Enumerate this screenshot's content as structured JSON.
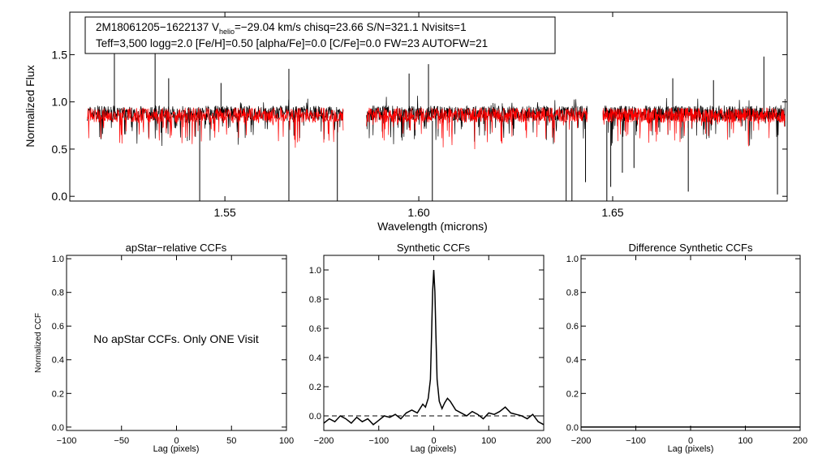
{
  "colors": {
    "observed": "#000000",
    "model": "#ff0000",
    "axes": "#000000",
    "background": "#ffffff"
  },
  "chart_data": [
    {
      "type": "line",
      "id": "spectrum",
      "title_line1_prefix": "2M18061205−1622137  V",
      "title_line1_subscript": "helio",
      "title_line1_suffix": "=−29.04 km/s  chisq=23.66  S/N=321.1  Nvisits=1",
      "title_line2": "Teff=3,500 logg=2.0 [Fe/H]=0.50 [alpha/Fe]=0.0 [C/Fe]=0.0 FW=23 AUTOFW=21",
      "xlabel": "Wavelength (microns)",
      "ylabel": "Normalized Flux",
      "xlim": [
        1.51,
        1.695
      ],
      "ylim": [
        -0.05,
        1.95
      ],
      "xticks": [
        1.55,
        1.6,
        1.65
      ],
      "xtick_labels": [
        "1.55",
        "1.60",
        "1.65"
      ],
      "yticks": [
        0.0,
        0.5,
        1.0,
        1.5
      ],
      "ytick_labels": [
        "0.0",
        "0.5",
        "1.0",
        "1.5"
      ],
      "detector_gaps": [
        [
          1.5805,
          1.5865
        ],
        [
          1.6435,
          1.6475
        ]
      ],
      "chips": [
        [
          1.5145,
          1.5805
        ],
        [
          1.5865,
          1.6435
        ],
        [
          1.6475,
          1.6945
        ]
      ],
      "series": [
        {
          "name": "observed",
          "color": "#000000",
          "continuum": 0.88
        },
        {
          "name": "model",
          "color": "#ff0000",
          "continuum": 0.86
        }
      ],
      "emission_spikes": [
        [
          1.5215,
          1.62
        ],
        [
          1.532,
          1.62
        ],
        [
          1.5355,
          1.25
        ],
        [
          1.549,
          1.2
        ],
        [
          1.5665,
          1.35
        ],
        [
          1.5975,
          1.3
        ],
        [
          1.6025,
          1.4
        ],
        [
          1.6655,
          1.25
        ],
        [
          1.676,
          1.23
        ],
        [
          1.689,
          1.48
        ]
      ],
      "absorption_dips": [
        [
          1.5435,
          -0.05
        ],
        [
          1.5665,
          -0.05
        ],
        [
          1.579,
          -0.05
        ],
        [
          1.6035,
          -0.05
        ],
        [
          1.638,
          -0.05
        ],
        [
          1.6395,
          -0.05
        ],
        [
          1.643,
          0.15
        ],
        [
          1.6485,
          -0.05
        ],
        [
          1.6495,
          0.1
        ],
        [
          1.6525,
          0.25
        ],
        [
          1.6555,
          0.3
        ],
        [
          1.6695,
          0.05
        ],
        [
          1.6925,
          0.02
        ]
      ]
    },
    {
      "type": "line",
      "id": "apstar-ccf",
      "title": "apStar−relative CCFs",
      "xlabel": "Lag (pixels)",
      "ylabel": "Normalized CCF",
      "xlim": [
        -100,
        100
      ],
      "ylim": [
        -0.02,
        1.02
      ],
      "xticks": [
        -100,
        -50,
        0,
        50,
        100
      ],
      "xtick_labels": [
        "−100",
        "−50",
        "0",
        "50",
        "100"
      ],
      "yticks": [
        0.0,
        0.2,
        0.4,
        0.6,
        0.8,
        1.0
      ],
      "ytick_labels": [
        "0.0",
        "0.2",
        "0.4",
        "0.6",
        "0.8",
        "1.0"
      ],
      "annotation": "No apStar CCFs.  Only ONE Visit",
      "series": []
    },
    {
      "type": "line",
      "id": "synthetic-ccf",
      "title": "Synthetic CCFs",
      "xlabel": "Lag (pixels)",
      "ylabel": "",
      "xlim": [
        -200,
        200
      ],
      "ylim": [
        -0.1,
        1.1
      ],
      "xticks": [
        -200,
        -100,
        0,
        100,
        200
      ],
      "xtick_labels": [
        "−200",
        "−100",
        "0",
        "100",
        "200"
      ],
      "yticks": [
        0.0,
        0.2,
        0.4,
        0.6,
        0.8,
        1.0
      ],
      "ytick_labels": [
        "0.0",
        "0.2",
        "0.4",
        "0.6",
        "0.8",
        "1.0"
      ],
      "zero_line": 0.0,
      "series": [
        {
          "name": "ccf",
          "color": "#000000",
          "x": [
            -200,
            -190,
            -180,
            -170,
            -160,
            -150,
            -140,
            -130,
            -120,
            -110,
            -100,
            -90,
            -80,
            -70,
            -60,
            -50,
            -40,
            -30,
            -20,
            -15,
            -10,
            -6,
            -4,
            -2,
            0,
            2,
            4,
            6,
            10,
            15,
            20,
            25,
            30,
            40,
            50,
            60,
            70,
            80,
            90,
            100,
            110,
            120,
            130,
            140,
            150,
            160,
            170,
            180,
            190,
            200
          ],
          "values": [
            -0.05,
            -0.02,
            -0.04,
            0.0,
            -0.02,
            -0.05,
            -0.01,
            -0.04,
            -0.02,
            -0.06,
            -0.03,
            0.0,
            -0.01,
            0.01,
            -0.02,
            0.02,
            0.04,
            0.02,
            0.08,
            0.06,
            0.12,
            0.25,
            0.55,
            0.85,
            1.0,
            0.85,
            0.55,
            0.25,
            0.1,
            0.05,
            0.09,
            0.12,
            0.1,
            0.04,
            0.02,
            0.0,
            0.03,
            0.01,
            -0.02,
            0.02,
            0.01,
            0.03,
            0.06,
            0.02,
            0.01,
            0.0,
            -0.02,
            0.01,
            -0.04,
            -0.06
          ]
        }
      ]
    },
    {
      "type": "line",
      "id": "difference-ccf",
      "title": "Difference Synthetic CCFs",
      "xlabel": "Lag (pixels)",
      "ylabel": "",
      "xlim": [
        -200,
        200
      ],
      "ylim": [
        -0.02,
        1.02
      ],
      "xticks": [
        -200,
        -100,
        0,
        100,
        200
      ],
      "xtick_labels": [
        "−200",
        "−100",
        "0",
        "100",
        "200"
      ],
      "yticks": [
        0.0,
        0.2,
        0.4,
        0.6,
        0.8,
        1.0
      ],
      "ytick_labels": [
        "0.0",
        "0.2",
        "0.4",
        "0.6",
        "0.8",
        "1.0"
      ],
      "series": [
        {
          "name": "difference",
          "color": "#000000",
          "x": [
            -200,
            200
          ],
          "values": [
            0.0,
            0.0
          ]
        }
      ]
    }
  ]
}
